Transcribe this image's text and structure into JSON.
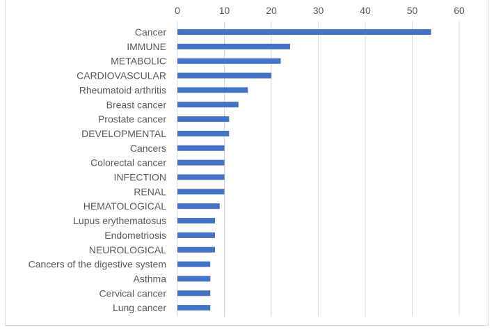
{
  "chart_data": {
    "type": "bar",
    "orientation": "horizontal",
    "title": "",
    "xlabel": "",
    "ylabel": "",
    "categories": [
      "Cancer",
      "IMMUNE",
      "METABOLIC",
      "CARDIOVASCULAR",
      "Rheumatoid arthritis",
      "Breast cancer",
      "Prostate cancer",
      "DEVELOPMENTAL",
      "Cancers",
      "Colorectal cancer",
      "INFECTION",
      "RENAL",
      "HEMATOLOGICAL",
      "Lupus erythematosus",
      "Endometriosis",
      "NEUROLOGICAL",
      "Cancers of the digestive system",
      "Asthma",
      "Cervical cancer",
      "Lung cancer"
    ],
    "values": [
      54,
      24,
      22,
      20,
      15,
      13,
      11,
      11,
      10,
      10,
      10,
      10,
      9,
      8,
      8,
      8,
      7,
      7,
      7,
      7
    ],
    "xlim": [
      0,
      60
    ],
    "xticks": [
      "0",
      "10",
      "20",
      "30",
      "40",
      "50",
      "60"
    ],
    "x_axis_position": "top",
    "grid": true,
    "legend": "none",
    "bar_color": "#4472c4",
    "grid_color": "#d9d9d9",
    "text_color": "#595959"
  }
}
